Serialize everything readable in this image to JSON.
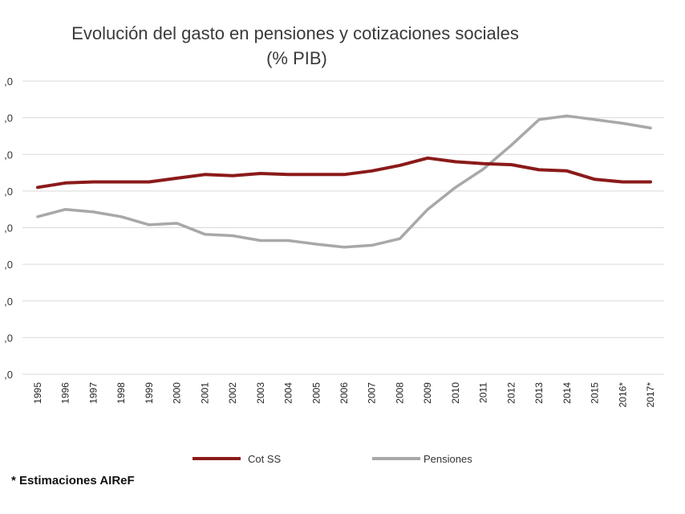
{
  "chart_data": {
    "type": "line",
    "title": "Evolución del gasto en pensiones y cotizaciones sociales",
    "subtitle": "(% PIB)",
    "xlabel": "",
    "ylabel": "",
    "categories": [
      "1995",
      "1996",
      "1997",
      "1998",
      "1999",
      "2000",
      "2001",
      "2002",
      "2003",
      "2004",
      "2005",
      "2006",
      "2007",
      "2008",
      "2009",
      "2010",
      "2011",
      "2012",
      "2013",
      "2014",
      "2015",
      "2016*",
      "2017*"
    ],
    "yticks": [
      0,
      1,
      2,
      3,
      4,
      5,
      6,
      7,
      8
    ],
    "ytick_labels": [
      ",0",
      ",0",
      ",0",
      ",0",
      ",0",
      ",0",
      ",0",
      ",0",
      ",0"
    ],
    "ylim": [
      0,
      8
    ],
    "grid": true,
    "legend_position": "bottom",
    "series": [
      {
        "name": "Cot SS",
        "color": "#8b1a1a",
        "values": [
          5.1,
          5.22,
          5.25,
          5.25,
          5.25,
          5.35,
          5.45,
          5.42,
          5.48,
          5.45,
          5.45,
          5.45,
          5.55,
          5.7,
          5.9,
          5.8,
          5.75,
          5.72,
          5.58,
          5.55,
          5.32,
          5.25,
          5.25
        ]
      },
      {
        "name": "Pensiones",
        "color": "#a8a8a8",
        "values": [
          4.3,
          4.5,
          4.43,
          4.3,
          4.08,
          4.12,
          3.82,
          3.78,
          3.65,
          3.65,
          3.55,
          3.47,
          3.52,
          3.7,
          4.5,
          5.1,
          5.6,
          6.25,
          6.95,
          7.05,
          6.95,
          6.85,
          6.72
        ]
      }
    ],
    "footnote": "* Estimaciones AIReF"
  }
}
